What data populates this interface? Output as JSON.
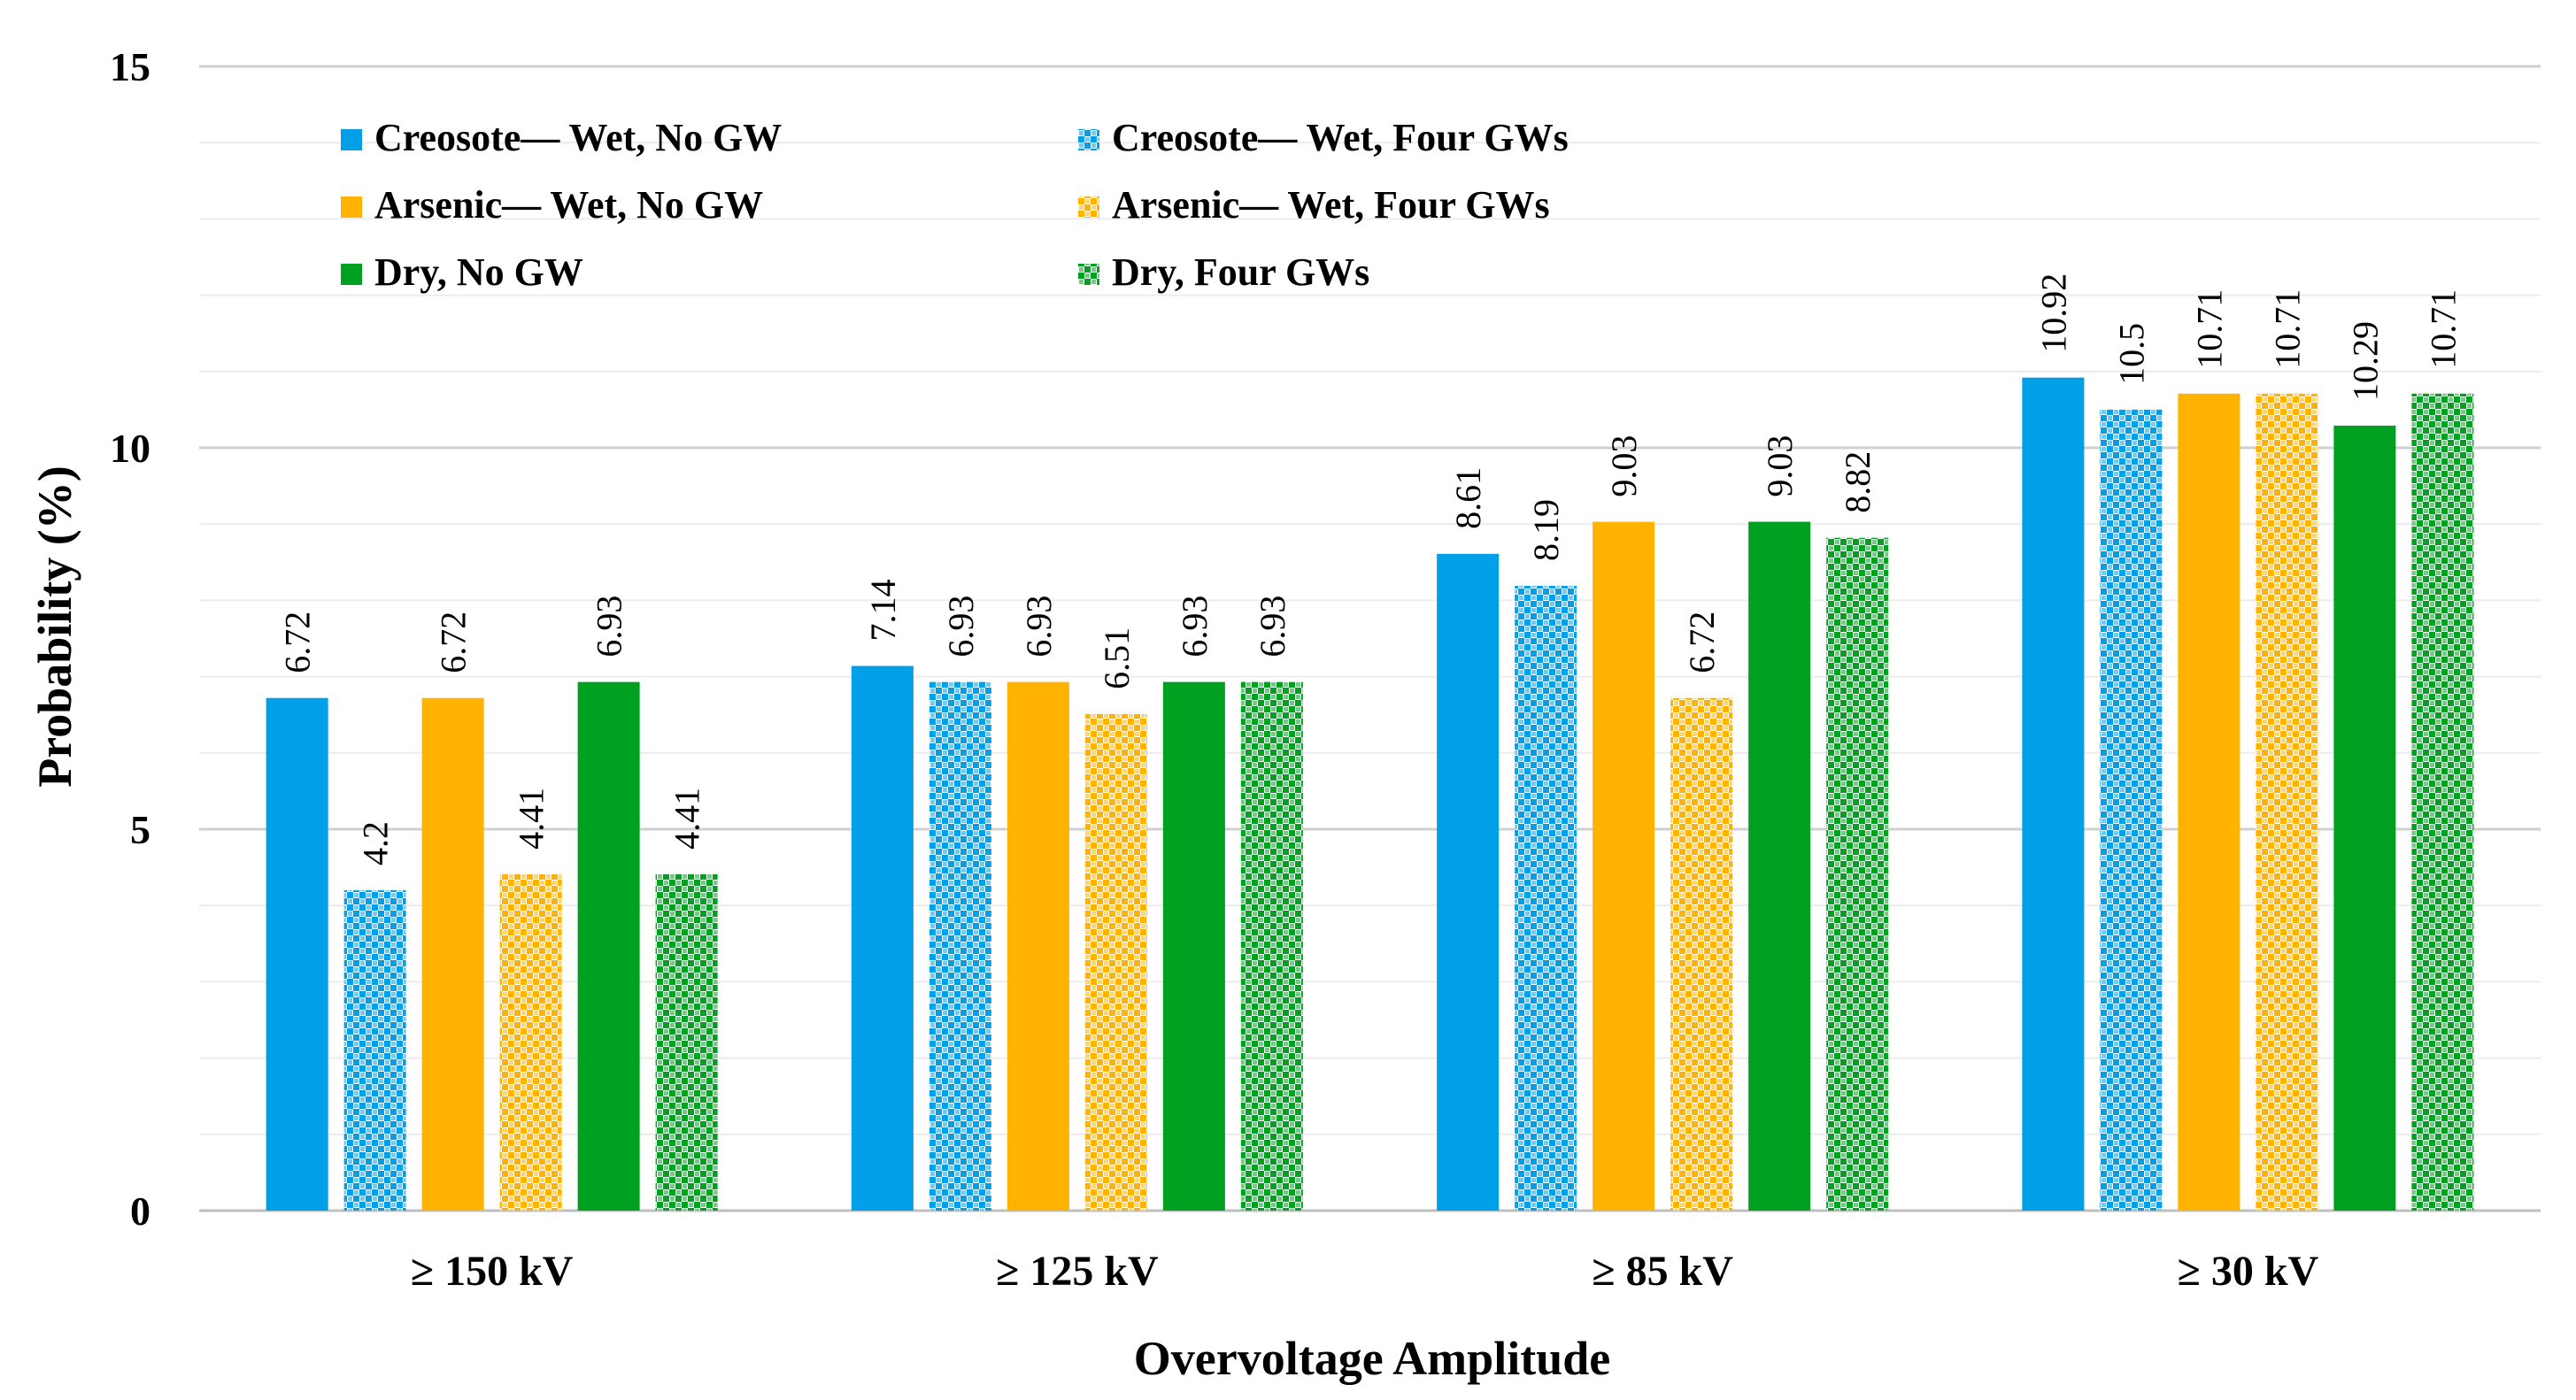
{
  "chart_data": {
    "type": "bar",
    "title": "",
    "xlabel": "Overvoltage Amplitude",
    "ylabel": "Probability (%)",
    "ylim": [
      0,
      15
    ],
    "yticks": [
      0,
      5,
      10,
      15
    ],
    "grid": true,
    "legend_position": "top-left",
    "categories": [
      "≥ 150 kV",
      "≥ 125 kV",
      "≥ 85 kV",
      "≥ 30 kV"
    ],
    "series": [
      {
        "name": "Creosote— Wet, No GW",
        "color": "#00A0E9",
        "pattern": "solid",
        "values": [
          6.72,
          7.14,
          8.61,
          10.92
        ],
        "labels": [
          "6.72",
          "7.14",
          "8.61",
          "10.92"
        ]
      },
      {
        "name": "Creosote— Wet, Four GWs",
        "color": "#00A0E9",
        "pattern": "checker",
        "values": [
          4.2,
          6.93,
          8.19,
          10.5
        ],
        "labels": [
          "4.2",
          "6.93",
          "8.19",
          "10.5"
        ]
      },
      {
        "name": "Arsenic— Wet, No GW",
        "color": "#FFB300",
        "pattern": "solid",
        "values": [
          6.72,
          6.93,
          9.03,
          10.71
        ],
        "labels": [
          "6.72",
          "6.93",
          "9.03",
          "10.71"
        ]
      },
      {
        "name": "Arsenic— Wet, Four GWs",
        "color": "#FFB300",
        "pattern": "checker",
        "values": [
          4.41,
          6.51,
          6.72,
          10.71
        ],
        "labels": [
          "4.41",
          "6.51",
          "6.72",
          "10.71"
        ]
      },
      {
        "name": "Dry, No GW",
        "color": "#00A020",
        "pattern": "solid",
        "values": [
          6.93,
          6.93,
          9.03,
          10.29
        ],
        "labels": [
          "6.93",
          "6.93",
          "9.03",
          "10.29"
        ]
      },
      {
        "name": "Dry, Four GWs",
        "color": "#00A020",
        "pattern": "checker",
        "values": [
          4.41,
          6.93,
          8.82,
          10.71
        ],
        "labels": [
          "4.41",
          "6.93",
          "8.82",
          "10.71"
        ]
      }
    ]
  }
}
